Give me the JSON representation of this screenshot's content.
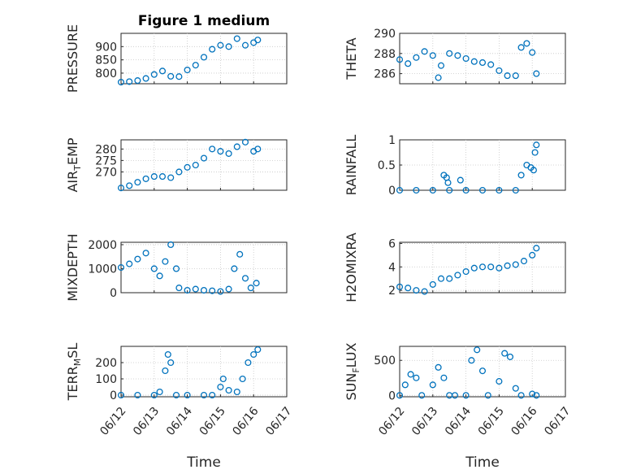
{
  "figure_title": "Figure 1 medium",
  "chart_data": [
    {
      "type": "scatter",
      "ylabel": "PRESSURE",
      "ylabel_sub": [],
      "title": "Figure 1 medium",
      "xlim": [
        "06/12",
        "06/17"
      ],
      "ylim": [
        760,
        950
      ],
      "yticks": [
        800,
        850,
        900
      ],
      "ytick_labels": [
        "800",
        "850",
        "900"
      ],
      "marker_color": "#0072BD",
      "grid": true,
      "x": [
        "06/12 00:00",
        "06/12 06:00",
        "06/12 12:00",
        "06/12 18:00",
        "06/13 00:00",
        "06/13 06:00",
        "06/13 12:00",
        "06/13 18:00",
        "06/14 00:00",
        "06/14 06:00",
        "06/14 12:00",
        "06/14 18:00",
        "06/15 00:00",
        "06/15 06:00",
        "06/15 12:00",
        "06/15 18:00",
        "06/16 00:00",
        "06/16 03:00"
      ],
      "y": [
        766,
        768,
        772,
        780,
        795,
        808,
        788,
        787,
        812,
        830,
        860,
        890,
        905,
        900,
        930,
        905,
        915,
        925
      ]
    },
    {
      "type": "scatter",
      "ylabel": "THETA",
      "ylabel_sub": [],
      "xlim": [
        "06/12",
        "06/17"
      ],
      "ylim": [
        285,
        290
      ],
      "yticks": [
        286,
        288,
        290
      ],
      "ytick_labels": [
        "286",
        "288",
        "290"
      ],
      "marker_color": "#0072BD",
      "grid": true,
      "x": [
        "06/12 00:00",
        "06/12 06:00",
        "06/12 12:00",
        "06/12 18:00",
        "06/13 00:00",
        "06/13 04:00",
        "06/13 06:00",
        "06/13 12:00",
        "06/13 18:00",
        "06/14 00:00",
        "06/14 06:00",
        "06/14 12:00",
        "06/14 18:00",
        "06/15 00:00",
        "06/15 06:00",
        "06/15 12:00",
        "06/15 16:00",
        "06/15 20:00",
        "06/16 00:00",
        "06/16 03:00"
      ],
      "y": [
        287.4,
        287.0,
        287.6,
        288.2,
        287.8,
        285.6,
        286.8,
        288.0,
        287.8,
        287.5,
        287.2,
        287.1,
        286.9,
        286.3,
        285.8,
        285.8,
        288.6,
        289.0,
        288.1,
        286.0
      ]
    },
    {
      "type": "scatter",
      "ylabel": "AIR",
      "ylabel_sub": [
        "T",
        "EMP"
      ],
      "xlim": [
        "06/12",
        "06/17"
      ],
      "ylim": [
        262,
        284
      ],
      "yticks": [
        270,
        275,
        280
      ],
      "ytick_labels": [
        "270",
        "275",
        "280"
      ],
      "marker_color": "#0072BD",
      "grid": true,
      "x": [
        "06/12 00:00",
        "06/12 06:00",
        "06/12 12:00",
        "06/12 18:00",
        "06/13 00:00",
        "06/13 06:00",
        "06/13 12:00",
        "06/13 18:00",
        "06/14 00:00",
        "06/14 06:00",
        "06/14 12:00",
        "06/14 18:00",
        "06/15 00:00",
        "06/15 06:00",
        "06/15 12:00",
        "06/15 18:00",
        "06/16 00:00",
        "06/16 03:00"
      ],
      "y": [
        263,
        264,
        265.5,
        267,
        268,
        268,
        267.5,
        270,
        272,
        273,
        276,
        280,
        279,
        278,
        281,
        283,
        279,
        280
      ]
    },
    {
      "type": "scatter",
      "ylabel": "RAINFALL",
      "ylabel_sub": [],
      "xlim": [
        "06/12",
        "06/17"
      ],
      "ylim": [
        0,
        1
      ],
      "yticks": [
        0,
        0.5,
        1
      ],
      "ytick_labels": [
        "0",
        "0.5",
        "1"
      ],
      "marker_color": "#0072BD",
      "grid": true,
      "x": [
        "06/12 00:00",
        "06/12 12:00",
        "06/13 00:00",
        "06/13 08:00",
        "06/13 10:00",
        "06/13 11:00",
        "06/13 12:00",
        "06/13 20:00",
        "06/14 00:00",
        "06/14 12:00",
        "06/15 00:00",
        "06/15 12:00",
        "06/15 16:00",
        "06/15 20:00",
        "06/15 23:00",
        "06/16 01:00",
        "06/16 02:00",
        "06/16 03:00"
      ],
      "y": [
        0,
        0,
        0,
        0.3,
        0.25,
        0.15,
        0,
        0.2,
        0,
        0,
        0,
        0,
        0.3,
        0.5,
        0.45,
        0.4,
        0.75,
        0.9
      ]
    },
    {
      "type": "scatter",
      "ylabel": "MIXDEPTH",
      "ylabel_sub": [],
      "xlim": [
        "06/12",
        "06/17"
      ],
      "ylim": [
        0,
        2100
      ],
      "yticks": [
        0,
        1000,
        2000
      ],
      "ytick_labels": [
        "0",
        "1000",
        "2000"
      ],
      "marker_color": "#0072BD",
      "grid": true,
      "x": [
        "06/12 00:00",
        "06/12 06:00",
        "06/12 12:00",
        "06/12 18:00",
        "06/13 00:00",
        "06/13 04:00",
        "06/13 08:00",
        "06/13 12:00",
        "06/13 16:00",
        "06/13 18:00",
        "06/14 00:00",
        "06/14 06:00",
        "06/14 12:00",
        "06/14 18:00",
        "06/15 00:00",
        "06/15 06:00",
        "06/15 10:00",
        "06/15 14:00",
        "06/15 18:00",
        "06/15 22:00",
        "06/16 02:00"
      ],
      "y": [
        1050,
        1200,
        1400,
        1650,
        1000,
        700,
        1300,
        2000,
        1000,
        200,
        100,
        150,
        100,
        80,
        50,
        150,
        1000,
        1600,
        600,
        200,
        400
      ]
    },
    {
      "type": "scatter",
      "ylabel": "H2OMIXRA",
      "ylabel_sub": [],
      "xlim": [
        "06/12",
        "06/17"
      ],
      "ylim": [
        1.8,
        6.1
      ],
      "yticks": [
        2,
        4,
        6
      ],
      "ytick_labels": [
        "2",
        "4",
        "6"
      ],
      "marker_color": "#0072BD",
      "grid": true,
      "x": [
        "06/12 00:00",
        "06/12 06:00",
        "06/12 12:00",
        "06/12 18:00",
        "06/13 00:00",
        "06/13 06:00",
        "06/13 12:00",
        "06/13 18:00",
        "06/14 00:00",
        "06/14 06:00",
        "06/14 12:00",
        "06/14 18:00",
        "06/15 00:00",
        "06/15 06:00",
        "06/15 12:00",
        "06/15 18:00",
        "06/16 00:00",
        "06/16 03:00"
      ],
      "y": [
        2.3,
        2.2,
        2.0,
        1.9,
        2.5,
        3.0,
        3.0,
        3.3,
        3.6,
        3.9,
        4.0,
        4.0,
        3.9,
        4.1,
        4.2,
        4.5,
        5.0,
        5.6
      ]
    },
    {
      "type": "scatter",
      "ylabel": "TERR",
      "ylabel_sub": [
        "M",
        "SL"
      ],
      "xlim": [
        "06/12",
        "06/17"
      ],
      "ylim": [
        -10,
        300
      ],
      "yticks": [
        0,
        100,
        200
      ],
      "ytick_labels": [
        "0",
        "100",
        "200"
      ],
      "marker_color": "#0072BD",
      "grid": true,
      "x": [
        "06/12 00:00",
        "06/12 12:00",
        "06/13 00:00",
        "06/13 04:00",
        "06/13 08:00",
        "06/13 10:00",
        "06/13 12:00",
        "06/13 16:00",
        "06/14 00:00",
        "06/14 12:00",
        "06/14 18:00",
        "06/15 00:00",
        "06/15 02:00",
        "06/15 06:00",
        "06/15 12:00",
        "06/15 16:00",
        "06/15 20:00",
        "06/16 00:00",
        "06/16 03:00"
      ],
      "y": [
        0,
        0,
        0,
        20,
        150,
        250,
        200,
        0,
        0,
        0,
        0,
        50,
        100,
        30,
        20,
        100,
        200,
        250,
        280
      ]
    },
    {
      "type": "scatter",
      "ylabel": "SUN",
      "ylabel_sub": [
        "F",
        "LUX"
      ],
      "xlim": [
        "06/12",
        "06/17"
      ],
      "ylim": [
        -20,
        700
      ],
      "yticks": [
        0,
        500
      ],
      "ytick_labels": [
        "0",
        "500"
      ],
      "marker_color": "#0072BD",
      "grid": true,
      "x": [
        "06/12 00:00",
        "06/12 04:00",
        "06/12 08:00",
        "06/12 12:00",
        "06/12 16:00",
        "06/13 00:00",
        "06/13 04:00",
        "06/13 08:00",
        "06/13 12:00",
        "06/13 16:00",
        "06/14 00:00",
        "06/14 04:00",
        "06/14 08:00",
        "06/14 12:00",
        "06/14 16:00",
        "06/15 00:00",
        "06/15 04:00",
        "06/15 08:00",
        "06/15 12:00",
        "06/15 16:00",
        "06/16 00:00",
        "06/16 03:00"
      ],
      "y": [
        0,
        150,
        300,
        250,
        0,
        150,
        400,
        250,
        0,
        0,
        0,
        500,
        650,
        350,
        0,
        200,
        600,
        550,
        100,
        0,
        20,
        0
      ]
    }
  ],
  "x_axis": {
    "ticks": [
      "06/12",
      "06/13",
      "06/14",
      "06/15",
      "06/16",
      "06/17"
    ],
    "label": "Time"
  }
}
